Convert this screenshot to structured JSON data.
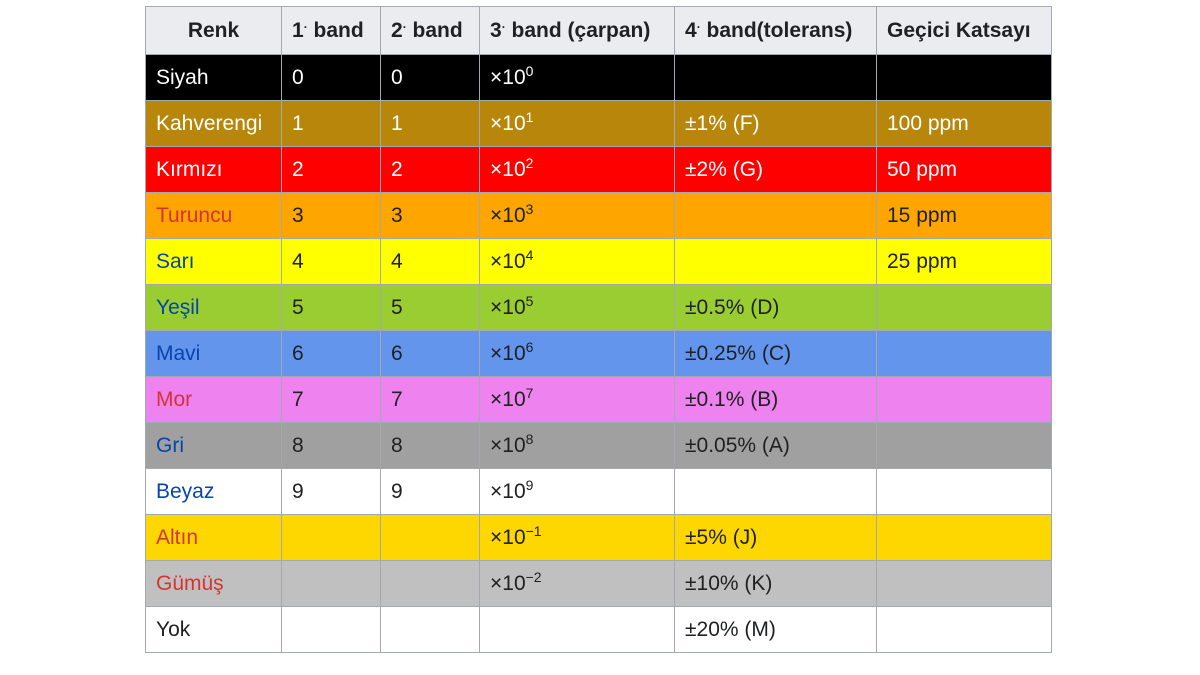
{
  "header": {
    "color": "Renk",
    "band1": {
      "num": "1",
      "dot": "·",
      "text": " band"
    },
    "band2": {
      "num": "2",
      "dot": "·",
      "text": " band"
    },
    "band3": {
      "num": "3",
      "dot": "·",
      "text": " band (çarpan)"
    },
    "band4": {
      "num": "4",
      "dot": "·",
      "text": " band(tolerans)"
    },
    "tempco": "Geçici Katsayı"
  },
  "rows": [
    {
      "color_name": "Siyah",
      "bg": "#000000",
      "fg": "#ffffff",
      "name_fg": "#ffffff",
      "is_link": false,
      "band1": "0",
      "band2": "0",
      "mult_base": "×10",
      "mult_exp": "0",
      "tolerance": "",
      "tempco": ""
    },
    {
      "color_name": "Kahverengi",
      "bg": "#b8860b",
      "fg": "#ffffff",
      "name_fg": "#ffffff",
      "is_link": false,
      "band1": "1",
      "band2": "1",
      "mult_base": "×10",
      "mult_exp": "1",
      "tolerance": "±1% (F)",
      "tempco": "100 ppm"
    },
    {
      "color_name": "Kırmızı",
      "bg": "#ff0000",
      "fg": "#ffffff",
      "name_fg": "#ffffff",
      "is_link": false,
      "band1": "2",
      "band2": "2",
      "mult_base": "×10",
      "mult_exp": "2",
      "tolerance": "±2% (G)",
      "tempco": "50 ppm"
    },
    {
      "color_name": "Turuncu",
      "bg": "#ffa500",
      "fg": "#202122",
      "name_fg": "#d73333",
      "is_link": true,
      "band1": "3",
      "band2": "3",
      "mult_base": "×10",
      "mult_exp": "3",
      "tolerance": "",
      "tempco": "15 ppm"
    },
    {
      "color_name": "Sarı",
      "bg": "#ffff00",
      "fg": "#202122",
      "name_fg": "#0645ad",
      "is_link": true,
      "band1": "4",
      "band2": "4",
      "mult_base": "×10",
      "mult_exp": "4",
      "tolerance": "",
      "tempco": "25 ppm"
    },
    {
      "color_name": "Yeşil",
      "bg": "#9acd32",
      "fg": "#202122",
      "name_fg": "#0645ad",
      "is_link": true,
      "band1": "5",
      "band2": "5",
      "mult_base": "×10",
      "mult_exp": "5",
      "tolerance": "±0.5% (D)",
      "tempco": ""
    },
    {
      "color_name": "Mavi",
      "bg": "#6495ed",
      "fg": "#202122",
      "name_fg": "#0645ad",
      "is_link": true,
      "band1": "6",
      "band2": "6",
      "mult_base": "×10",
      "mult_exp": "6",
      "tolerance": "±0.25% (C)",
      "tempco": ""
    },
    {
      "color_name": "Mor",
      "bg": "#ee82ee",
      "fg": "#202122",
      "name_fg": "#d73333",
      "is_link": true,
      "band1": "7",
      "band2": "7",
      "mult_base": "×10",
      "mult_exp": "7",
      "tolerance": "±0.1% (B)",
      "tempco": ""
    },
    {
      "color_name": "Gri",
      "bg": "#a0a0a0",
      "fg": "#202122",
      "name_fg": "#0645ad",
      "is_link": true,
      "band1": "8",
      "band2": "8",
      "mult_base": "×10",
      "mult_exp": "8",
      "tolerance": "±0.05% (A)",
      "tempco": ""
    },
    {
      "color_name": "Beyaz",
      "bg": "#ffffff",
      "fg": "#202122",
      "name_fg": "#0645ad",
      "is_link": true,
      "band1": "9",
      "band2": "9",
      "mult_base": "×10",
      "mult_exp": "9",
      "tolerance": "",
      "tempco": ""
    },
    {
      "color_name": "Altın",
      "bg": "#ffd700",
      "fg": "#202122",
      "name_fg": "#d73333",
      "is_link": true,
      "band1": "",
      "band2": "",
      "mult_base": "×10",
      "mult_exp": "−1",
      "tolerance": "±5% (J)",
      "tempco": ""
    },
    {
      "color_name": "Gümüş",
      "bg": "#c0c0c0",
      "fg": "#202122",
      "name_fg": "#d73333",
      "is_link": true,
      "band1": "",
      "band2": "",
      "mult_base": "×10",
      "mult_exp": "−2",
      "tolerance": "±10% (K)",
      "tempco": ""
    },
    {
      "color_name": "Yok",
      "bg": "#ffffff",
      "fg": "#202122",
      "name_fg": "#202122",
      "is_link": false,
      "band1": "",
      "band2": "",
      "mult_base": "",
      "mult_exp": "",
      "tolerance": "±20% (M)",
      "tempco": ""
    }
  ]
}
